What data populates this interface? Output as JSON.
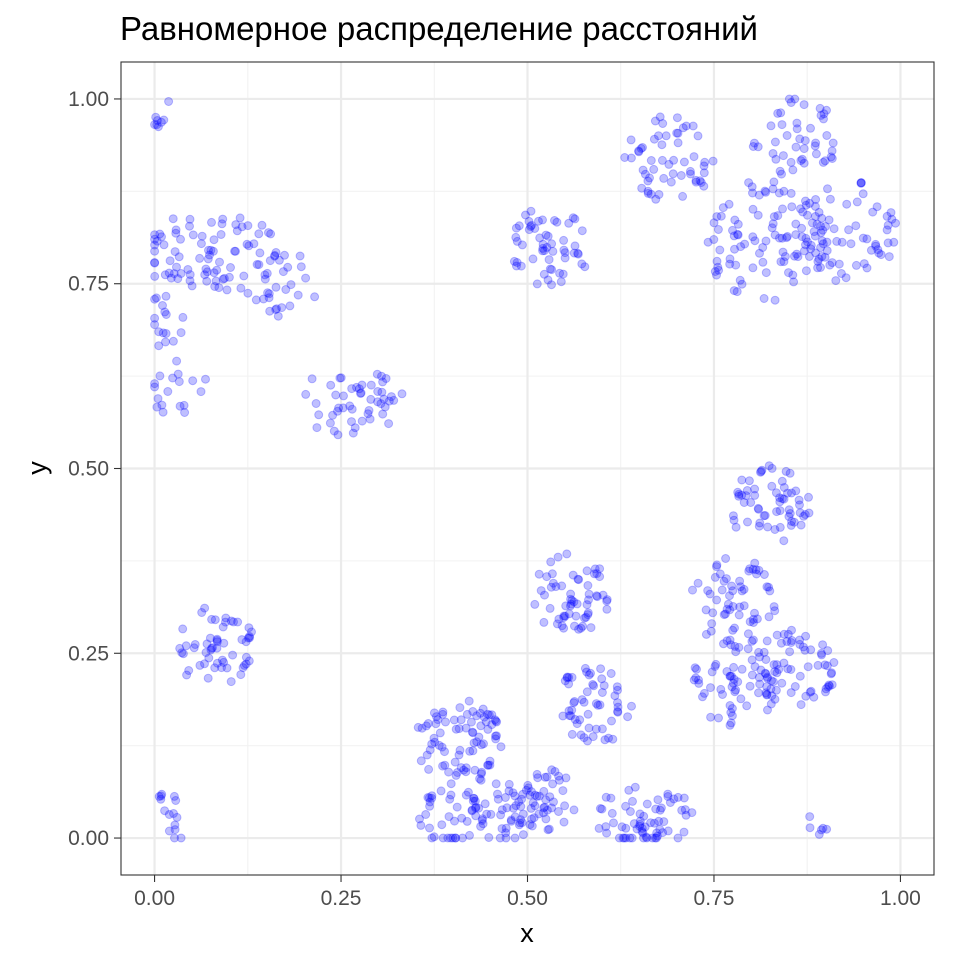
{
  "chart_data": {
    "type": "scatter",
    "title": "Равномерное распределение расстояний",
    "xlabel": "x",
    "ylabel": "y",
    "xlim": [
      -0.045,
      1.045
    ],
    "ylim": [
      -0.05,
      1.05
    ],
    "x_ticks": [
      0,
      0.25,
      0.5,
      0.75,
      1.0
    ],
    "x_tick_labels": [
      "0.00",
      "0.25",
      "0.50",
      "0.75",
      "1.00"
    ],
    "y_ticks": [
      0,
      0.25,
      0.5,
      0.75,
      1.0
    ],
    "y_tick_labels": [
      "0.00",
      "0.25",
      "0.50",
      "0.75",
      "1.00"
    ],
    "grid": true,
    "point_color": "#0000ff",
    "point_opacity": 0.25,
    "clusters": [
      {
        "cx": 0.01,
        "cy": 0.98,
        "r": 0.02,
        "n": 8
      },
      {
        "cx": 0.035,
        "cy": 0.79,
        "r": 0.055,
        "n": 40
      },
      {
        "cx": 0.11,
        "cy": 0.79,
        "r": 0.055,
        "n": 40
      },
      {
        "cx": 0.175,
        "cy": 0.75,
        "r": 0.045,
        "n": 30
      },
      {
        "cx": 0.01,
        "cy": 0.7,
        "r": 0.035,
        "n": 16
      },
      {
        "cx": 0.03,
        "cy": 0.61,
        "r": 0.04,
        "n": 18
      },
      {
        "cx": 0.255,
        "cy": 0.595,
        "r": 0.055,
        "n": 35
      },
      {
        "cx": 0.3,
        "cy": 0.59,
        "r": 0.04,
        "n": 15
      },
      {
        "cx": 0.53,
        "cy": 0.8,
        "r": 0.055,
        "n": 55
      },
      {
        "cx": 0.69,
        "cy": 0.92,
        "r": 0.06,
        "n": 55
      },
      {
        "cx": 0.86,
        "cy": 0.95,
        "r": 0.06,
        "n": 45
      },
      {
        "cx": 0.82,
        "cy": 0.81,
        "r": 0.085,
        "n": 95
      },
      {
        "cx": 0.93,
        "cy": 0.82,
        "r": 0.07,
        "n": 65
      },
      {
        "cx": 0.825,
        "cy": 0.45,
        "r": 0.055,
        "n": 60
      },
      {
        "cx": 0.08,
        "cy": 0.26,
        "r": 0.055,
        "n": 55
      },
      {
        "cx": 0.02,
        "cy": 0.05,
        "r": 0.02,
        "n": 7
      },
      {
        "cx": 0.025,
        "cy": 0.015,
        "r": 0.02,
        "n": 8
      },
      {
        "cx": 0.56,
        "cy": 0.33,
        "r": 0.055,
        "n": 60
      },
      {
        "cx": 0.59,
        "cy": 0.18,
        "r": 0.055,
        "n": 55
      },
      {
        "cx": 0.775,
        "cy": 0.32,
        "r": 0.06,
        "n": 60
      },
      {
        "cx": 0.78,
        "cy": 0.21,
        "r": 0.06,
        "n": 60
      },
      {
        "cx": 0.86,
        "cy": 0.23,
        "r": 0.055,
        "n": 60
      },
      {
        "cx": 0.41,
        "cy": 0.13,
        "r": 0.06,
        "n": 80
      },
      {
        "cx": 0.4,
        "cy": 0.03,
        "r": 0.045,
        "n": 40
      },
      {
        "cx": 0.47,
        "cy": 0.04,
        "r": 0.045,
        "n": 45
      },
      {
        "cx": 0.52,
        "cy": 0.05,
        "r": 0.045,
        "n": 40
      },
      {
        "cx": 0.64,
        "cy": 0.02,
        "r": 0.05,
        "n": 40
      },
      {
        "cx": 0.69,
        "cy": 0.02,
        "r": 0.04,
        "n": 25
      },
      {
        "cx": 0.88,
        "cy": 0.015,
        "r": 0.03,
        "n": 6
      }
    ]
  }
}
